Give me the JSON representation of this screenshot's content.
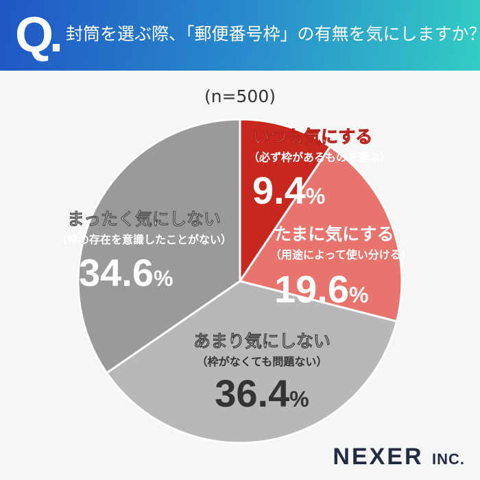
{
  "header": {
    "q": "Q.",
    "title": "封筒を選ぶ際、「郵便番号枠」の有無を気にしますか？"
  },
  "sample": "(n=500)",
  "chart_data": {
    "type": "pie",
    "title": "封筒を選ぶ際、「郵便番号枠」の有無を気にしますか？",
    "start": "top",
    "direction": "clockwise",
    "slices": [
      {
        "label": "いつも気にする",
        "sub": "（必ず枠があるものを選ぶ）",
        "value": 9.4,
        "text": "9.4",
        "color": "#c6281f",
        "outline": "#b8231b"
      },
      {
        "label": "たまに気にする",
        "sub": "（用途によって使い分ける）",
        "value": 19.6,
        "text": "19.6",
        "color": "#e8756d",
        "outline": "#d9564e"
      },
      {
        "label": "あまり気にしない",
        "sub": "（枠がなくても問題ない）",
        "value": 36.4,
        "text": "36.4",
        "color": "#b9b7b7",
        "outline": "#555"
      },
      {
        "label": "まったく気にしない",
        "sub": "（枠の存在を意識したことがない）",
        "value": 34.6,
        "text": "34.6",
        "color": "#9b9999",
        "outline": "#555"
      }
    ],
    "unit": "%"
  },
  "logo": {
    "main": "NEXER",
    "suffix": "INC."
  }
}
